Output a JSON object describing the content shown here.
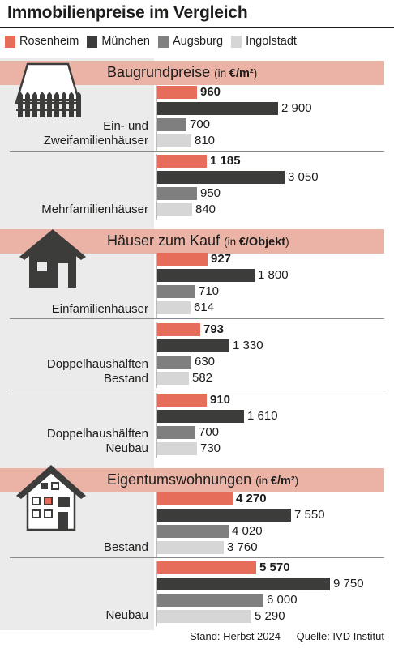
{
  "title": "Immobilienpreise im Vergleich",
  "legend": [
    {
      "name": "Rosenheim",
      "color": "#e56d5a"
    },
    {
      "name": "München",
      "color": "#3c3c3b"
    },
    {
      "name": "Augsburg",
      "color": "#7f7f7f"
    },
    {
      "name": "Ingolstadt",
      "color": "#d6d6d6"
    }
  ],
  "sections": [
    {
      "title": "Baugrundpreise",
      "unit_pre": "(in ",
      "unit_bold": "€/m²",
      "unit_post": ")",
      "icon": "fence-roof-icon"
    },
    {
      "title": "Häuser zum Kauf",
      "unit_pre": "(in ",
      "unit_bold": "€/Objekt",
      "unit_post": ")",
      "icon": "house-icon"
    },
    {
      "title": "Eigentumswohnungen",
      "unit_pre": "(in ",
      "unit_bold": "€/m²",
      "unit_post": ")",
      "icon": "apartment-house-icon"
    }
  ],
  "chart_data": {
    "type": "bar",
    "orientation": "horizontal",
    "title": "Immobilienpreise im Vergleich",
    "series_names": [
      "Rosenheim",
      "München",
      "Augsburg",
      "Ingolstadt"
    ],
    "groups": [
      {
        "section": "Baugrundpreise",
        "unit": "€/m²",
        "label": [
          "Ein- und",
          "Zweifamilienhäuser"
        ],
        "values": [
          960,
          2900,
          700,
          810
        ],
        "display": [
          "960",
          "2 900",
          "700",
          "810"
        ]
      },
      {
        "section": "Baugrundpreise",
        "unit": "€/m²",
        "label": [
          "Mehrfamilienhäuser"
        ],
        "values": [
          1185,
          3050,
          950,
          840
        ],
        "display": [
          "1 185",
          "3 050",
          "950",
          "840"
        ]
      },
      {
        "section": "Häuser zum Kauf",
        "unit": "€/Objekt",
        "label": [
          "Einfamilienhäuser"
        ],
        "values": [
          927,
          1800,
          710,
          614
        ],
        "display": [
          "927",
          "1 800",
          "710",
          "614"
        ]
      },
      {
        "section": "Häuser zum Kauf",
        "unit": "€/Objekt",
        "label": [
          "Doppelhaushälften",
          "Bestand"
        ],
        "values": [
          793,
          1330,
          630,
          582
        ],
        "display": [
          "793",
          "1 330",
          "630",
          "582"
        ]
      },
      {
        "section": "Häuser zum Kauf",
        "unit": "€/Objekt",
        "label": [
          "Doppelhaushälften",
          "Neubau"
        ],
        "values": [
          910,
          1610,
          700,
          730
        ],
        "display": [
          "910",
          "1 610",
          "700",
          "730"
        ]
      },
      {
        "section": "Eigentumswohnungen",
        "unit": "€/m²",
        "label": [
          "Bestand"
        ],
        "values": [
          4270,
          7550,
          4020,
          3760
        ],
        "display": [
          "4 270",
          "7 550",
          "4 020",
          "3 760"
        ]
      },
      {
        "section": "Eigentumswohnungen",
        "unit": "€/m²",
        "label": [
          "Neubau"
        ],
        "values": [
          5570,
          9750,
          6000,
          5290
        ],
        "display": [
          "5 570",
          "9 750",
          "6 000",
          "5 290"
        ]
      }
    ]
  },
  "footer": {
    "stand": "Stand: Herbst 2024",
    "quelle": "Quelle: IVD Institut"
  }
}
